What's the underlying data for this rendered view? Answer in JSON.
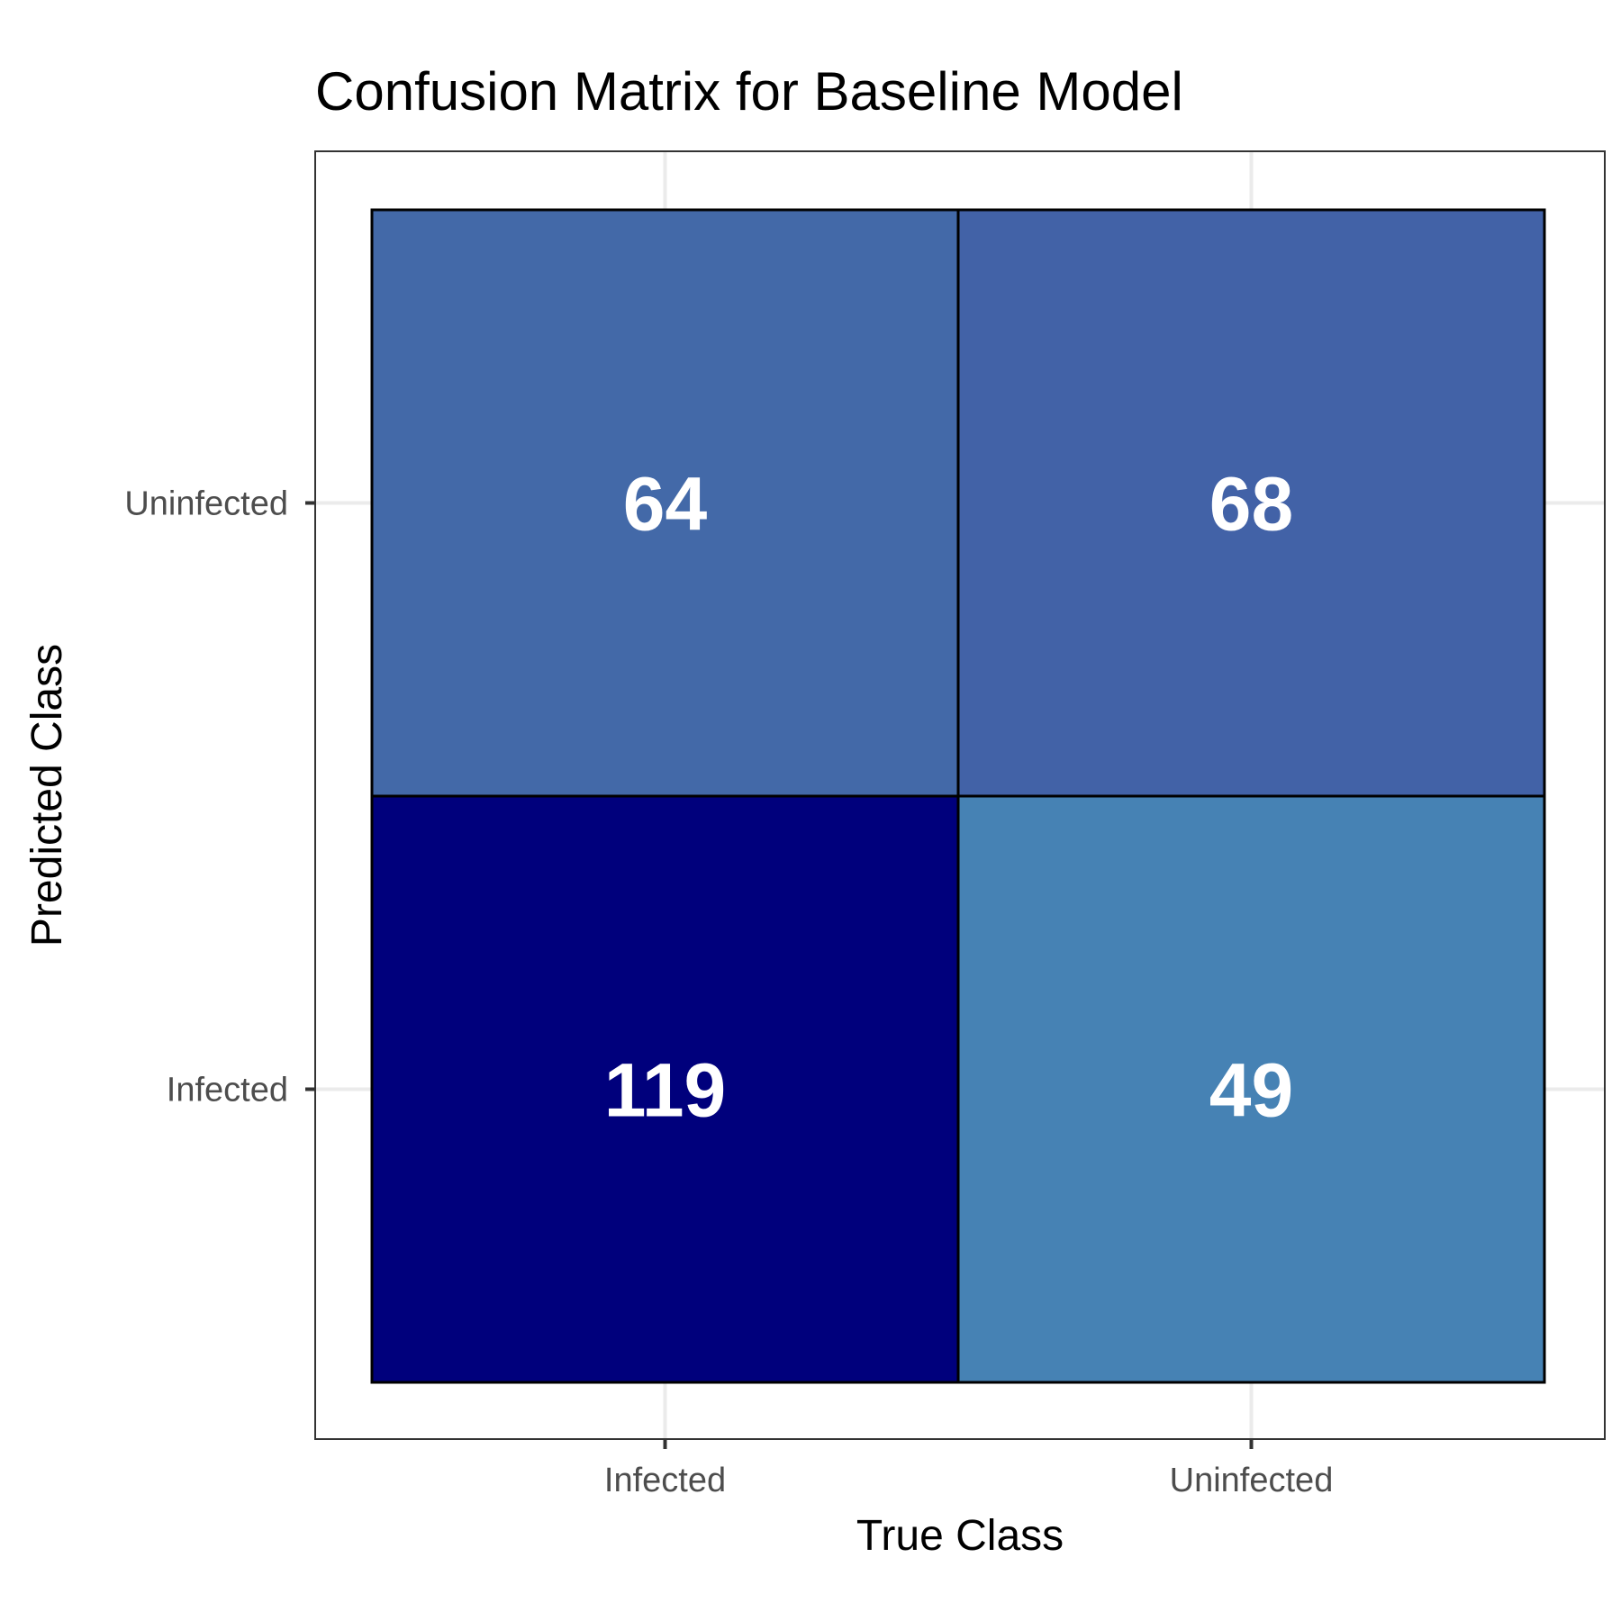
{
  "chart_data": {
    "type": "heatmap",
    "title": "Confusion Matrix for Baseline Model",
    "xlabel": "True Class",
    "ylabel": "Predicted Class",
    "x_categories": [
      "Infected",
      "Uninfected"
    ],
    "y_categories": [
      "Infected",
      "Uninfected"
    ],
    "cells": [
      {
        "true": "Infected",
        "predicted": "Uninfected",
        "value": 64,
        "color": "#4369A8"
      },
      {
        "true": "Uninfected",
        "predicted": "Uninfected",
        "value": 68,
        "color": "#4262A7"
      },
      {
        "true": "Infected",
        "predicted": "Infected",
        "value": 119,
        "color": "#00007C"
      },
      {
        "true": "Uninfected",
        "predicted": "Infected",
        "value": 49,
        "color": "#4682B4"
      }
    ],
    "color_scale": {
      "low": "#4682B4",
      "high": "#000080"
    },
    "grid": true,
    "legend": "none"
  }
}
